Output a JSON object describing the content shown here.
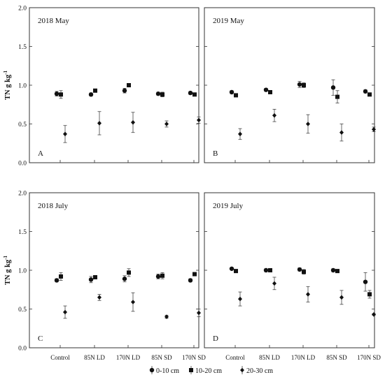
{
  "chart_data": [
    {
      "type": "scatter",
      "title": "2018 May",
      "panel_label": "A",
      "ylabel": "TN g kg-1",
      "ylim": [
        0,
        2.0
      ],
      "yticks": [
        "0.0",
        "0.5",
        "1.0",
        "1.5",
        "2.0"
      ],
      "categories": [
        "Control",
        "85N LD",
        "170N LD",
        "85N SD",
        "170N SD"
      ],
      "series": [
        {
          "name": "0-10 cm",
          "marker": "circle",
          "values": [
            0.89,
            0.88,
            0.93,
            0.89,
            0.9
          ],
          "err": [
            0.03,
            0.02,
            0.03,
            0.02,
            0.02
          ]
        },
        {
          "name": "10-20 cm",
          "marker": "square",
          "values": [
            0.88,
            0.93,
            1.0,
            0.88,
            0.88
          ],
          "err": [
            0.05,
            0.02,
            0.02,
            0.03,
            0.02
          ]
        },
        {
          "name": "20-30 cm",
          "marker": "diamond",
          "values": [
            0.37,
            0.51,
            0.52,
            0.5,
            0.55
          ],
          "err": [
            0.11,
            0.15,
            0.13,
            0.04,
            0.04
          ]
        }
      ]
    },
    {
      "type": "scatter",
      "title": "2019 May",
      "panel_label": "B",
      "ylabel": "",
      "ylim": [
        0,
        2.0
      ],
      "yticks": [
        "0.0",
        "0.5",
        "1.0",
        "1.5",
        "2.0"
      ],
      "categories": [
        "Control",
        "85N LD",
        "170N LD",
        "85N SD",
        "170N SD"
      ],
      "series": [
        {
          "name": "0-10 cm",
          "marker": "circle",
          "values": [
            0.91,
            0.94,
            1.01,
            0.97,
            0.92
          ],
          "err": [
            0.02,
            0.02,
            0.04,
            0.1,
            0.02
          ]
        },
        {
          "name": "10-20 cm",
          "marker": "square",
          "values": [
            0.87,
            0.91,
            1.0,
            0.85,
            0.88
          ],
          "err": [
            0.02,
            0.02,
            0.03,
            0.08,
            0.02
          ]
        },
        {
          "name": "20-30 cm",
          "marker": "diamond",
          "values": [
            0.37,
            0.61,
            0.5,
            0.39,
            0.43
          ],
          "err": [
            0.07,
            0.08,
            0.12,
            0.11,
            0.03
          ]
        }
      ]
    },
    {
      "type": "scatter",
      "title": "2018 July",
      "panel_label": "C",
      "ylabel": "TN g kg-1",
      "ylim": [
        0,
        2.0
      ],
      "yticks": [
        "0.0",
        "0.5",
        "1.0",
        "1.5",
        "2.0"
      ],
      "categories": [
        "Control",
        "85N LD",
        "170N LD",
        "85N SD",
        "170N SD"
      ],
      "series": [
        {
          "name": "0-10 cm",
          "marker": "circle",
          "values": [
            0.87,
            0.88,
            0.89,
            0.92,
            0.87
          ],
          "err": [
            0.02,
            0.04,
            0.04,
            0.03,
            0.02
          ]
        },
        {
          "name": "10-20 cm",
          "marker": "square",
          "values": [
            0.92,
            0.91,
            0.97,
            0.93,
            0.95
          ],
          "err": [
            0.05,
            0.02,
            0.05,
            0.04,
            0.02
          ]
        },
        {
          "name": "20-30 cm",
          "marker": "diamond",
          "values": [
            0.46,
            0.65,
            0.59,
            0.4,
            0.45
          ],
          "err": [
            0.08,
            0.04,
            0.12,
            0.02,
            0.05
          ]
        }
      ]
    },
    {
      "type": "scatter",
      "title": "2019 July",
      "panel_label": "D",
      "ylabel": "",
      "ylim": [
        0,
        2.0
      ],
      "yticks": [
        "0.0",
        "0.5",
        "1.0",
        "1.5",
        "2.0"
      ],
      "categories": [
        "Control",
        "85N LD",
        "170N LD",
        "85N SD",
        "170N SD"
      ],
      "series": [
        {
          "name": "0-10 cm",
          "marker": "circle",
          "values": [
            1.02,
            1.0,
            1.01,
            1.0,
            0.85
          ],
          "err": [
            0.01,
            0.02,
            0.02,
            0.02,
            0.12
          ]
        },
        {
          "name": "10-20 cm",
          "marker": "square",
          "values": [
            0.99,
            1.0,
            0.98,
            0.99,
            0.69
          ],
          "err": [
            0.02,
            0.02,
            0.03,
            0.02,
            0.05
          ]
        },
        {
          "name": "20-30 cm",
          "marker": "diamond",
          "values": [
            0.63,
            0.83,
            0.69,
            0.65,
            0.43
          ],
          "err": [
            0.09,
            0.08,
            0.1,
            0.09,
            0.01
          ]
        }
      ]
    }
  ],
  "legend": {
    "placement": "bottom-center",
    "items": [
      {
        "label": "0-10 cm",
        "marker": "circle"
      },
      {
        "label": "10-20 cm",
        "marker": "square"
      },
      {
        "label": "20-30 cm",
        "marker": "diamond"
      }
    ]
  }
}
